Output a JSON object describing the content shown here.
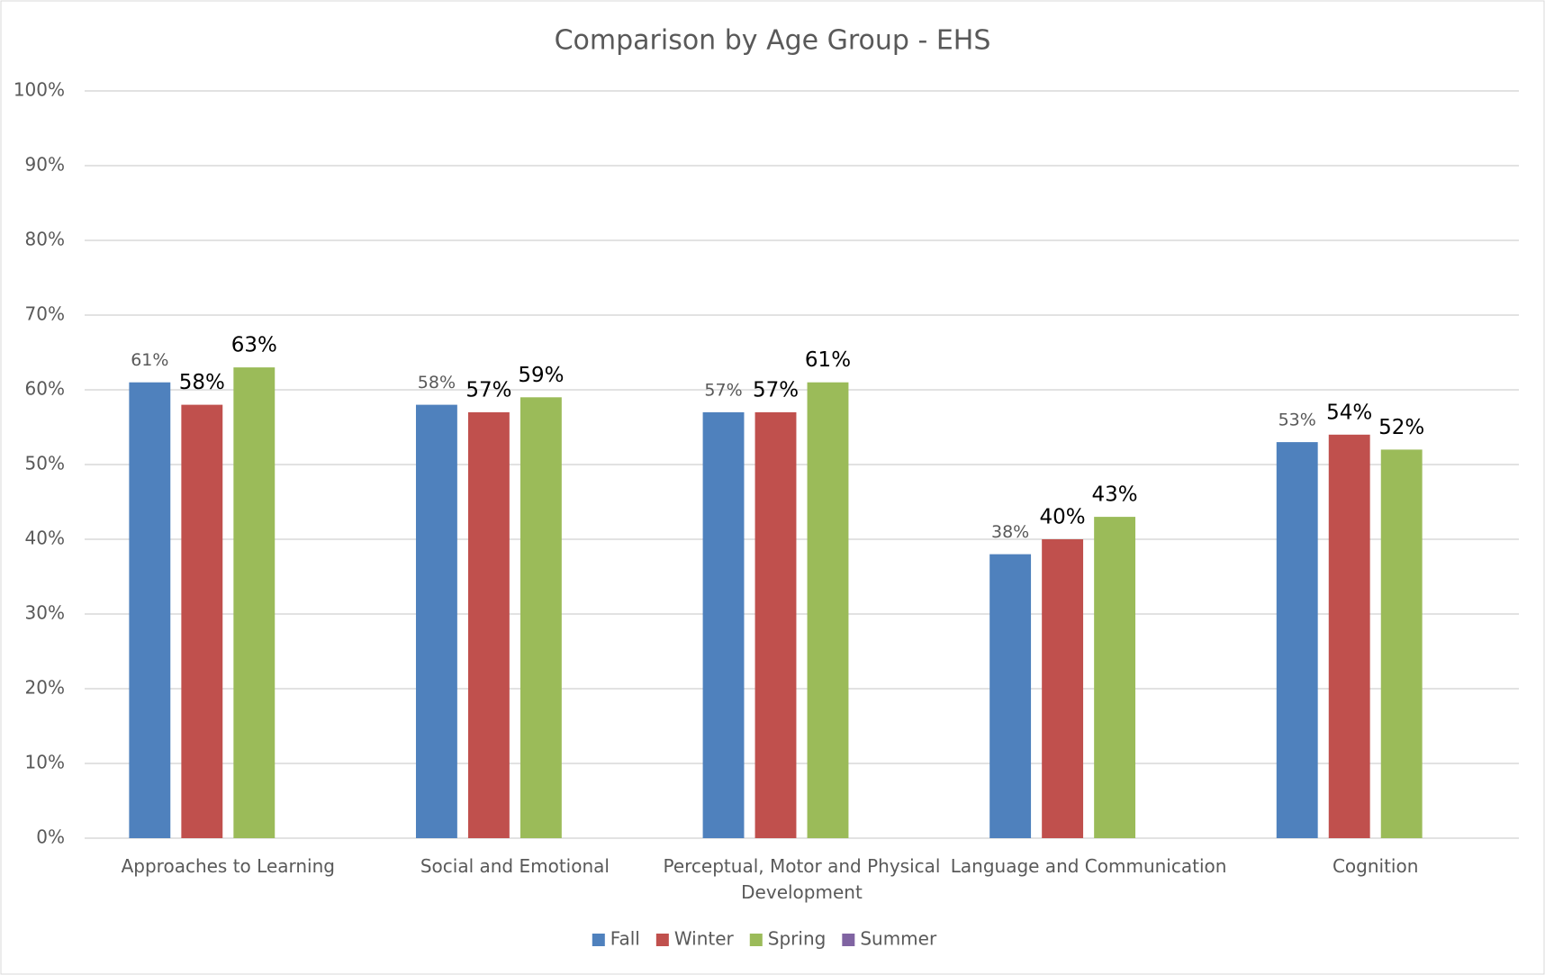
{
  "chart_data": {
    "type": "bar",
    "title": "Comparison by Age Group - EHS",
    "categories": [
      "Approaches to Learning",
      "Social and Emotional",
      "Perceptual, Motor and Physical Development",
      "Language and Communication",
      "Cognition"
    ],
    "series": [
      {
        "name": "Fall",
        "color": "#4f81bd",
        "values": [
          61,
          58,
          57,
          38,
          53
        ],
        "value_labels": [
          "61%",
          "58%",
          "57%",
          "38%",
          "53%"
        ]
      },
      {
        "name": "Winter",
        "color": "#c0504d",
        "values": [
          58,
          57,
          57,
          40,
          54
        ],
        "value_labels": [
          "58%",
          "57%",
          "57%",
          "40%",
          "54%"
        ]
      },
      {
        "name": "Spring",
        "color": "#9bbb59",
        "values": [
          63,
          59,
          61,
          43,
          52
        ],
        "value_labels": [
          "63%",
          "59%",
          "61%",
          "43%",
          "52%"
        ]
      },
      {
        "name": "Summer",
        "color": "#8064a2",
        "values": [
          null,
          null,
          null,
          null,
          null
        ]
      }
    ],
    "ylim": [
      0,
      100
    ],
    "yticks": [
      {
        "value": 0,
        "label": "0%"
      },
      {
        "value": 10,
        "label": "10%"
      },
      {
        "value": 20,
        "label": "20%"
      },
      {
        "value": 30,
        "label": "30%"
      },
      {
        "value": 40,
        "label": "40%"
      },
      {
        "value": 50,
        "label": "50%"
      },
      {
        "value": 60,
        "label": "60%"
      },
      {
        "value": 70,
        "label": "70%"
      },
      {
        "value": 80,
        "label": "80%"
      },
      {
        "value": 90,
        "label": "90%"
      },
      {
        "value": 100,
        "label": "100%"
      }
    ],
    "grid": true,
    "legend": "bottom"
  }
}
